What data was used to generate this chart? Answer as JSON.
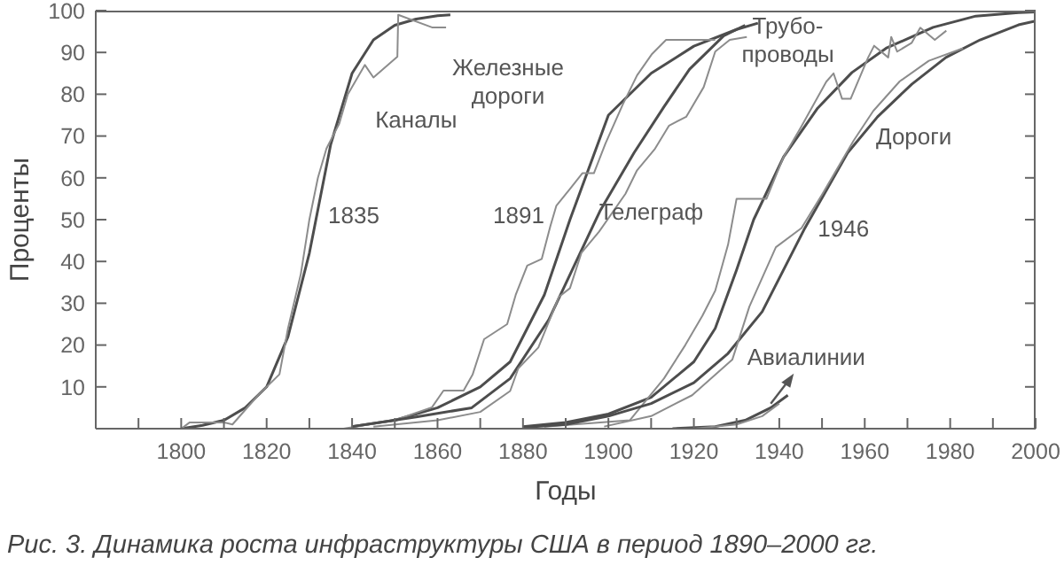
{
  "chart_data": {
    "type": "line",
    "xlabel": "Годы",
    "ylabel": "Проценты",
    "xlim": [
      1780,
      2000
    ],
    "ylim": [
      0,
      100
    ],
    "xticks": [
      {
        "value": 1790,
        "label": null
      },
      1800,
      {
        "value": 1810,
        "label": null
      },
      1820,
      {
        "value": 1830,
        "label": null
      },
      1840,
      {
        "value": 1850,
        "label": null
      },
      1860,
      {
        "value": 1870,
        "label": null
      },
      1880,
      {
        "value": 1890,
        "label": null
      },
      1900,
      {
        "value": 1910,
        "label": null
      },
      1920,
      {
        "value": 1930,
        "label": null
      },
      1940,
      {
        "value": 1950,
        "label": null
      },
      1960,
      {
        "value": 1970,
        "label": null
      },
      1980,
      {
        "value": 1990,
        "label": null
      },
      2000
    ],
    "yticks": [
      10,
      20,
      30,
      40,
      50,
      60,
      70,
      80,
      90,
      100
    ],
    "marker": "none",
    "line_style": "solid",
    "series": [
      {
        "color": "#4d4d4d",
        "x": [
          1800,
          1805,
          1810,
          1815,
          1820,
          1825,
          1830,
          1835,
          1840,
          1845,
          1850,
          1855,
          1860,
          1863
        ],
        "values": [
          0,
          0.8,
          2,
          5,
          10,
          22,
          42,
          68,
          85,
          93,
          96.5,
          98,
          98.8,
          99
        ]
      },
      {
        "color": "#8c8c8c",
        "x": [
          1800,
          1802,
          1810,
          1812,
          1818,
          1823,
          1825,
          1828,
          1830,
          1832,
          1834,
          1837,
          1839,
          1843,
          1845,
          1850.6,
          1850.8,
          1858.7,
          1862
        ],
        "values": [
          0,
          1.5,
          1.5,
          1,
          8,
          13,
          24,
          37,
          50,
          60,
          67,
          73,
          80,
          87,
          84,
          89,
          99,
          96,
          96
        ]
      },
      {
        "color": "#4d4d4d",
        "x": [
          1840,
          1850,
          1860,
          1870,
          1877,
          1885,
          1891,
          1900,
          1910,
          1920,
          1930,
          1935
        ],
        "values": [
          0.5,
          2,
          5,
          10,
          16,
          32,
          50,
          75,
          85,
          91.5,
          95.5,
          97
        ]
      },
      {
        "color": "#8c8c8c",
        "x": [
          1838,
          1850,
          1858.7,
          1861.4,
          1866.1,
          1868.2,
          1870.9,
          1876.3,
          1878.3,
          1881,
          1884.4,
          1886.4,
          1887.8,
          1891.2,
          1893.9,
          1896.6,
          1899.3,
          1903.3,
          1906.7,
          1910.1,
          1913.5,
          1919.6,
          1925
        ],
        "values": [
          0,
          2,
          5.1,
          9.1,
          9.1,
          12.9,
          21.4,
          25,
          32,
          39,
          40.6,
          48.4,
          53.3,
          57.6,
          61.1,
          61.1,
          68.2,
          77.4,
          84.5,
          89.5,
          93,
          93,
          93
        ]
      },
      {
        "color": "#4d4d4d",
        "x": [
          1840,
          1855,
          1868,
          1877,
          1886,
          1892,
          1898,
          1906,
          1913,
          1919,
          1927,
          1932
        ],
        "values": [
          0.5,
          2.8,
          5,
          12,
          26,
          39,
          52,
          66,
          77,
          86,
          94,
          96.5
        ]
      },
      {
        "color": "#8c8c8c",
        "x": [
          1845,
          1860,
          1870,
          1877,
          1878.9,
          1883.6,
          1888.4,
          1891,
          1893.7,
          1897.8,
          1904,
          1906.7,
          1910.8,
          1914.2,
          1918.2,
          1922.3,
          1925,
          1928.4,
          1932.4
        ],
        "values": [
          0.5,
          2,
          4,
          9,
          14.4,
          19.4,
          31.5,
          33.6,
          42.1,
          47.1,
          56.2,
          61.8,
          66.8,
          72.5,
          74.6,
          81.7,
          90.2,
          93,
          93.7
        ]
      },
      {
        "color": "#4d4d4d",
        "x": [
          1880,
          1890,
          1900,
          1910,
          1920,
          1925,
          1930,
          1934,
          1941,
          1949,
          1957,
          1965,
          1976,
          1986,
          1996,
          2000
        ],
        "values": [
          0.5,
          1.5,
          3.5,
          7.5,
          16,
          24,
          38,
          50,
          65,
          76.7,
          85.2,
          91,
          96,
          98.7,
          99.5,
          99.7
        ]
      },
      {
        "color": "#8c8c8c",
        "x": [
          1885,
          1905,
          1913,
          1918,
          1922,
          1925,
          1928,
          1930,
          1937,
          1941,
          1945,
          1951,
          1952.7,
          1954.7,
          1956.7,
          1960.8,
          1962.2,
          1965.5,
          1966.2,
          1967.6,
          1971,
          1973,
          1976.4,
          1979.1
        ],
        "values": [
          0.5,
          2,
          12,
          20,
          27,
          33,
          44,
          55,
          55,
          65,
          72,
          83,
          85,
          78.9,
          78.9,
          88.8,
          91.6,
          88.8,
          93.7,
          90.2,
          92.3,
          95.9,
          93,
          95.2
        ]
      },
      {
        "color": "#4d4d4d",
        "x": [
          1880,
          1890,
          1900,
          1910,
          1920,
          1928,
          1936,
          1946,
          1956,
          1963,
          1971,
          1979,
          1987,
          1996,
          2000
        ],
        "values": [
          0.3,
          1,
          3,
          6,
          11,
          18,
          28,
          48,
          66,
          74.6,
          82.4,
          88.8,
          93,
          96.6,
          97.5
        ]
      },
      {
        "color": "#8c8c8c",
        "x": [
          1899,
          1910,
          1919.6,
          1929,
          1933,
          1939.2,
          1945.2,
          1950,
          1957.4,
          1962,
          1968.2,
          1975,
          1983
        ],
        "values": [
          0.5,
          3,
          8,
          16.5,
          29.2,
          43.4,
          48,
          56,
          68.9,
          76,
          83.1,
          88,
          91
        ]
      },
      {
        "color": "#4d4d4d",
        "x": [
          1915,
          1925,
          1932,
          1938,
          1942
        ],
        "values": [
          0,
          0.5,
          2,
          5,
          8
        ]
      },
      {
        "color": "#8c8c8c",
        "x": [
          1920,
          1930,
          1936,
          1940
        ],
        "values": [
          0,
          1,
          3,
          6
        ]
      }
    ],
    "annotations": [
      "Каналы",
      "Железные\nдороги",
      "Трубо-\nпроводы",
      "Телеграф",
      "Дороги",
      "1835",
      "1891",
      "1946",
      "Авиалинии",
      "Рис. 3.  Динамика роста инфраструктуры США в период 1890–2000 гг."
    ]
  }
}
